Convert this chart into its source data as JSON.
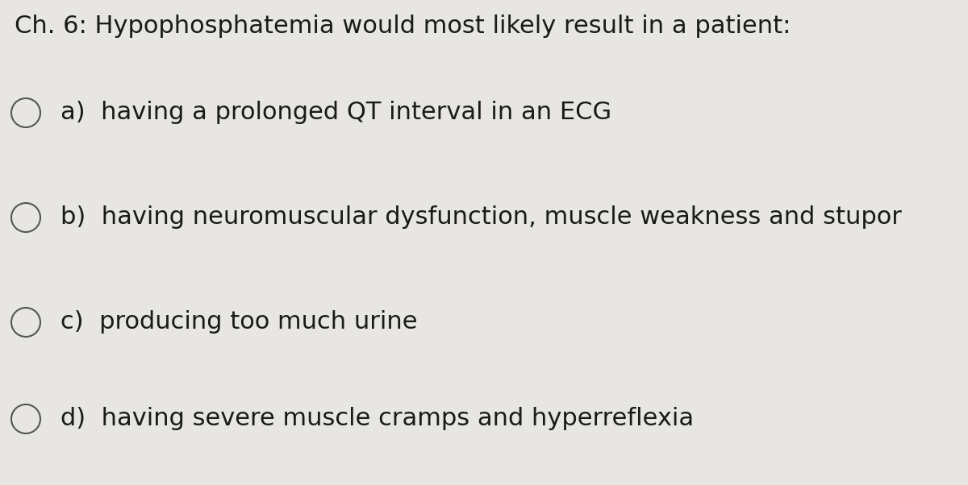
{
  "background_color": "#e8e6e2",
  "title": "Ch. 6: Hypophosphatemia would most likely result in a patient:",
  "title_fontsize": 22,
  "title_color": "#1a1a1a",
  "options": [
    "a)  having a prolonged QT interval in an ECG",
    "b)  having neuromuscular dysfunction, muscle weakness and stupor",
    "c)  producing too much urine",
    "d)  having severe muscle cramps and hyperreflexia"
  ],
  "option_fontsize": 22,
  "option_color": "#1a1a1a",
  "circle_color": "#555555",
  "circle_linewidth": 1.5,
  "fig_width": 12.0,
  "fig_height": 6.02,
  "dpi": 100
}
